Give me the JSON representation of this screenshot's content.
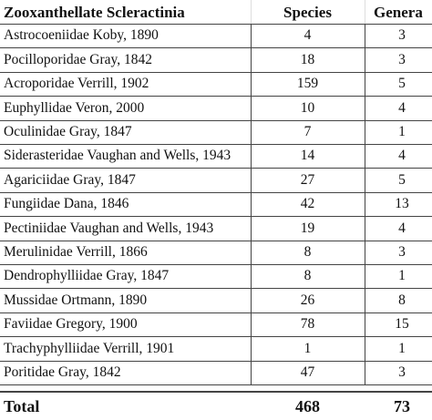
{
  "table": {
    "header": [
      "Zooxanthellate Scleractinia",
      "Species",
      "Genera"
    ],
    "rows": [
      [
        "Astrocoeniidae Koby, 1890",
        4,
        3
      ],
      [
        "Pocilloporidae Gray, 1842",
        18,
        3
      ],
      [
        "Acroporidae Verrill, 1902",
        159,
        5
      ],
      [
        "Euphyllidae Veron, 2000",
        10,
        4
      ],
      [
        "Oculinidae Gray, 1847",
        7,
        1
      ],
      [
        "Siderasteridae Vaughan and Wells, 1943",
        14,
        4
      ],
      [
        "Agariciidae Gray, 1847",
        27,
        5
      ],
      [
        "Fungiidae Dana, 1846",
        42,
        13
      ],
      [
        "Pectiniidae Vaughan and Wells, 1943",
        19,
        4
      ],
      [
        "Merulinidae Verrill, 1866",
        8,
        3
      ],
      [
        "Dendrophylliidae Gray, 1847",
        8,
        1
      ],
      [
        "Mussidae Ortmann, 1890",
        26,
        8
      ],
      [
        "Faviidae Gregory, 1900",
        78,
        15
      ],
      [
        "Trachyphylliidae Verrill, 1901",
        1,
        1
      ],
      [
        "Poritidae Gray, 1842",
        47,
        3
      ]
    ],
    "total": [
      "Total",
      468,
      73
    ]
  }
}
